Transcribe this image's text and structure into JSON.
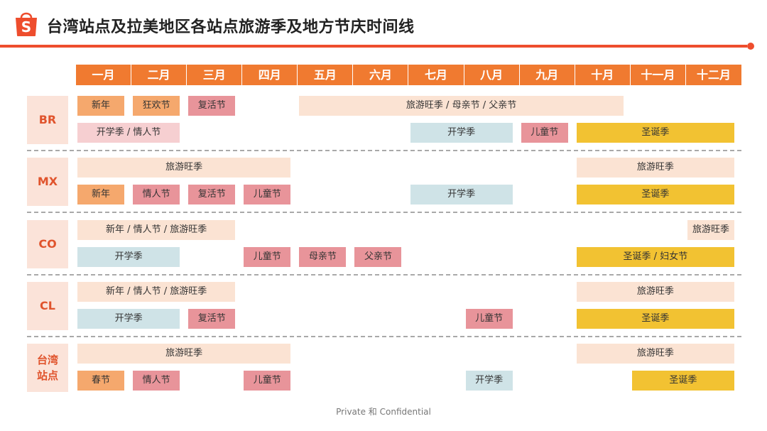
{
  "title": "台湾站点及拉美地区各站点旅游季及地方节庆时间线",
  "logo_letter": "S",
  "months": [
    "一月",
    "二月",
    "三月",
    "四月",
    "五月",
    "六月",
    "七月",
    "八月",
    "九月",
    "十月",
    "十一月",
    "十二月"
  ],
  "footer": "Private 和 Confidential",
  "colors": {
    "accent": "#ee4d2d",
    "month_bar": "#f07a30",
    "peach": "#fbe3d3",
    "orange": "#f5a86d",
    "rose": "#e8949a",
    "pink": "#f6cfd1",
    "blue": "#cfe3e7",
    "yellow": "#f2c232"
  },
  "regions": [
    {
      "label": "BR",
      "events": [
        {
          "label": "新年",
          "start_month": 1,
          "end_month": 1,
          "line": 1,
          "color": "orange"
        },
        {
          "label": "狂欢节",
          "start_month": 2,
          "end_month": 2,
          "line": 1,
          "color": "orange"
        },
        {
          "label": "复活节",
          "start_month": 3,
          "end_month": 3,
          "line": 1,
          "color": "rose"
        },
        {
          "label": "旅游旺季 / 母亲节 / 父亲节",
          "start_month": 5,
          "end_month": 10,
          "line": 1,
          "color": "peach"
        },
        {
          "label": "开学季 / 情人节",
          "start_month": 1,
          "end_month": 2,
          "line": 2,
          "color": "pink"
        },
        {
          "label": "开学季",
          "start_month": 7,
          "end_month": 8,
          "line": 2,
          "color": "blue"
        },
        {
          "label": "儿童节",
          "start_month": 9,
          "end_month": 9,
          "line": 2,
          "color": "rose"
        },
        {
          "label": "圣诞季",
          "start_month": 10,
          "end_month": 12,
          "line": 2,
          "color": "yellow"
        }
      ]
    },
    {
      "label": "MX",
      "events": [
        {
          "label": "旅游旺季",
          "start_month": 1,
          "end_month": 4,
          "line": 1,
          "color": "peach"
        },
        {
          "label": "旅游旺季",
          "start_month": 10,
          "end_month": 12,
          "line": 1,
          "color": "peach"
        },
        {
          "label": "新年",
          "start_month": 1,
          "end_month": 1,
          "line": 2,
          "color": "orange"
        },
        {
          "label": "情人节",
          "start_month": 2,
          "end_month": 2,
          "line": 2,
          "color": "rose"
        },
        {
          "label": "复活节",
          "start_month": 3,
          "end_month": 3,
          "line": 2,
          "color": "rose"
        },
        {
          "label": "儿童节",
          "start_month": 4,
          "end_month": 4,
          "line": 2,
          "color": "rose"
        },
        {
          "label": "开学季",
          "start_month": 7,
          "end_month": 8,
          "line": 2,
          "color": "blue"
        },
        {
          "label": "圣诞季",
          "start_month": 10,
          "end_month": 12,
          "line": 2,
          "color": "yellow"
        }
      ]
    },
    {
      "label": "CO",
      "events": [
        {
          "label": "新年 / 情人节 / 旅游旺季",
          "start_month": 1,
          "end_month": 3,
          "line": 1,
          "color": "peach"
        },
        {
          "label": "旅游旺季",
          "start_month": 12,
          "end_month": 12,
          "line": 1,
          "color": "peach"
        },
        {
          "label": "开学季",
          "start_month": 1,
          "end_month": 2,
          "line": 2,
          "color": "blue"
        },
        {
          "label": "儿童节",
          "start_month": 4,
          "end_month": 4,
          "line": 2,
          "color": "rose"
        },
        {
          "label": "母亲节",
          "start_month": 5,
          "end_month": 5,
          "line": 2,
          "color": "rose"
        },
        {
          "label": "父亲节",
          "start_month": 6,
          "end_month": 6,
          "line": 2,
          "color": "rose"
        },
        {
          "label": "圣诞季 / 妇女节",
          "start_month": 10,
          "end_month": 12,
          "line": 2,
          "color": "yellow"
        }
      ]
    },
    {
      "label": "CL",
      "events": [
        {
          "label": "新年 / 情人节 / 旅游旺季",
          "start_month": 1,
          "end_month": 3,
          "line": 1,
          "color": "peach"
        },
        {
          "label": "旅游旺季",
          "start_month": 10,
          "end_month": 12,
          "line": 1,
          "color": "peach"
        },
        {
          "label": "开学季",
          "start_month": 1,
          "end_month": 2,
          "line": 2,
          "color": "blue"
        },
        {
          "label": "复活节",
          "start_month": 3,
          "end_month": 3,
          "line": 2,
          "color": "rose"
        },
        {
          "label": "儿童节",
          "start_month": 8,
          "end_month": 8,
          "line": 2,
          "color": "rose"
        },
        {
          "label": "圣诞季",
          "start_month": 10,
          "end_month": 12,
          "line": 2,
          "color": "yellow"
        }
      ]
    },
    {
      "label": "台湾站点",
      "events": [
        {
          "label": "旅游旺季",
          "start_month": 1,
          "end_month": 4,
          "line": 1,
          "color": "peach"
        },
        {
          "label": "旅游旺季",
          "start_month": 10,
          "end_month": 12,
          "line": 1,
          "color": "peach"
        },
        {
          "label": "春节",
          "start_month": 1,
          "end_month": 1,
          "line": 2,
          "color": "orange"
        },
        {
          "label": "情人节",
          "start_month": 2,
          "end_month": 2,
          "line": 2,
          "color": "rose"
        },
        {
          "label": "儿童节",
          "start_month": 4,
          "end_month": 4,
          "line": 2,
          "color": "rose"
        },
        {
          "label": "开学季",
          "start_month": 8,
          "end_month": 8,
          "line": 2,
          "color": "blue"
        },
        {
          "label": "圣诞季",
          "start_month": 11,
          "end_month": 12,
          "line": 2,
          "color": "yellow"
        }
      ]
    }
  ]
}
